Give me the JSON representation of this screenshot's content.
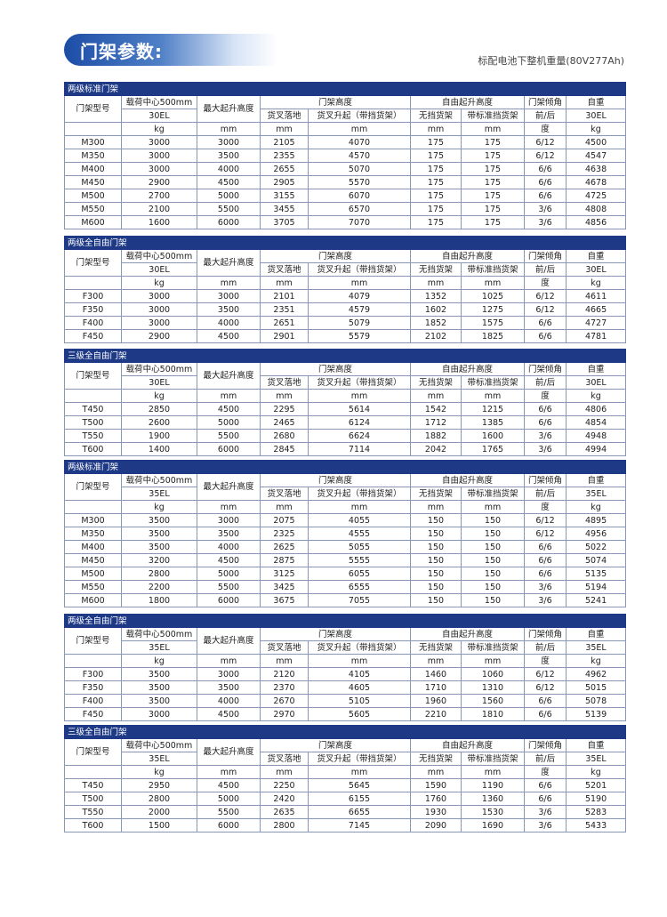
{
  "header": {
    "title": "门架参数:",
    "subtitle": "标配电池下整机重量(80V277Ah)"
  },
  "tables": [
    {
      "section": "两级标准门架",
      "header": [
        [
          "门架型号",
          "载荷中心500mm",
          "最大起升高度",
          "门架高度",
          "自由起升高度",
          "门架倾角",
          "自重"
        ],
        [
          "30EL",
          "货叉落地",
          "货叉升起（带挡货架）",
          "无挡货架",
          "带标准挡货架",
          "前/后",
          "30EL"
        ],
        [
          "kg",
          "mm",
          "mm",
          "mm",
          "mm",
          "mm",
          "度",
          "kg"
        ]
      ],
      "rows": [
        [
          "M300",
          3000,
          3000,
          2105,
          4070,
          175,
          175,
          "6/12",
          4500
        ],
        [
          "M350",
          3000,
          3500,
          2355,
          4570,
          175,
          175,
          "6/12",
          4547
        ],
        [
          "M400",
          3000,
          4000,
          2655,
          5070,
          175,
          175,
          "6/6",
          4638
        ],
        [
          "M450",
          2900,
          4500,
          2905,
          5570,
          175,
          175,
          "6/6",
          4678
        ],
        [
          "M500",
          2700,
          5000,
          3155,
          6070,
          175,
          175,
          "6/6",
          4725
        ],
        [
          "M550",
          2100,
          5500,
          3455,
          6570,
          175,
          175,
          "3/6",
          4808
        ],
        [
          "M600",
          1600,
          6000,
          3705,
          7070,
          175,
          175,
          "3/6",
          4856
        ]
      ]
    },
    {
      "section": "两级全自由门架",
      "header": [
        [
          "门架型号",
          "载荷中心500mm",
          "最大起升高度",
          "门架高度",
          "自由起升高度",
          "门架倾角",
          "自重"
        ],
        [
          "30EL",
          "货叉落地",
          "货叉升起（带挡货架）",
          "无挡货架",
          "带标准挡货架",
          "前/后",
          "30EL"
        ],
        [
          "kg",
          "mm",
          "mm",
          "mm",
          "mm",
          "mm",
          "度",
          "kg"
        ]
      ],
      "rows": [
        [
          "F300",
          3000,
          3000,
          2101,
          4079,
          1352,
          1025,
          "6/12",
          4611
        ],
        [
          "F350",
          3000,
          3500,
          2351,
          4579,
          1602,
          1275,
          "6/12",
          4665
        ],
        [
          "F400",
          3000,
          4000,
          2651,
          5079,
          1852,
          1575,
          "6/6",
          4727
        ],
        [
          "F450",
          2900,
          4500,
          2901,
          5579,
          2102,
          1825,
          "6/6",
          4781
        ]
      ]
    },
    {
      "section": "三级全自由门架",
      "header": [
        [
          "门架型号",
          "载荷中心500mm",
          "最大起升高度",
          "门架高度",
          "自由起升高度",
          "门架倾角",
          "自重"
        ],
        [
          "30EL",
          "货叉落地",
          "货叉升起（带挡货架）",
          "无挡货架",
          "带标准挡货架",
          "前/后",
          "30EL"
        ],
        [
          "kg",
          "mm",
          "mm",
          "mm",
          "mm",
          "mm",
          "度",
          "kg"
        ]
      ],
      "rows": [
        [
          "T450",
          2850,
          4500,
          2295,
          5614,
          1542,
          1215,
          "6/6",
          4806
        ],
        [
          "T500",
          2600,
          5000,
          2465,
          6124,
          1712,
          1385,
          "6/6",
          4854
        ],
        [
          "T550",
          1900,
          5500,
          2680,
          6624,
          1882,
          1600,
          "3/6",
          4948
        ],
        [
          "T600",
          1400,
          6000,
          2845,
          7114,
          2042,
          1765,
          "3/6",
          4994
        ]
      ]
    },
    {
      "section": "两级标准门架",
      "header": [
        [
          "门架型号",
          "载荷中心500mm",
          "最大起升高度",
          "门架高度",
          "自由起升高度",
          "门架倾角",
          "自重"
        ],
        [
          "35EL",
          "货叉落地",
          "货叉升起（带挡货架）",
          "无挡货架",
          "带标准挡货架",
          "前/后",
          "35EL"
        ],
        [
          "kg",
          "mm",
          "mm",
          "mm",
          "mm",
          "mm",
          "度",
          "kg"
        ]
      ],
      "rows": [
        [
          "M300",
          3500,
          3000,
          2075,
          4055,
          150,
          150,
          "6/12",
          4895
        ],
        [
          "M350",
          3500,
          3500,
          2325,
          4555,
          150,
          150,
          "6/12",
          4956
        ],
        [
          "M400",
          3500,
          4000,
          2625,
          5055,
          150,
          150,
          "6/6",
          5022
        ],
        [
          "M450",
          3200,
          4500,
          2875,
          5555,
          150,
          150,
          "6/6",
          5074
        ],
        [
          "M500",
          2800,
          5000,
          3125,
          6055,
          150,
          150,
          "6/6",
          5135
        ],
        [
          "M550",
          2200,
          5500,
          3425,
          6555,
          150,
          150,
          "3/6",
          5194
        ],
        [
          "M600",
          1800,
          6000,
          3675,
          7055,
          150,
          150,
          "3/6",
          5241
        ]
      ]
    },
    {
      "section": "两级全自由门架",
      "header": [
        [
          "门架型号",
          "载荷中心500mm",
          "最大起升高度",
          "门架高度",
          "自由起升高度",
          "门架倾角",
          "自重"
        ],
        [
          "35EL",
          "货叉落地",
          "货叉升起（带挡货架）",
          "无挡货架",
          "带标准挡货架",
          "前/后",
          "35EL"
        ],
        [
          "kg",
          "mm",
          "mm",
          "mm",
          "mm",
          "mm",
          "度",
          "kg"
        ]
      ],
      "rows": [
        [
          "F300",
          3500,
          3000,
          2120,
          4105,
          1460,
          1060,
          "6/12",
          4962
        ],
        [
          "F350",
          3500,
          3500,
          2370,
          4605,
          1710,
          1310,
          "6/12",
          5015
        ],
        [
          "F400",
          3500,
          4000,
          2670,
          5105,
          1960,
          1560,
          "6/6",
          5078
        ],
        [
          "F450",
          3000,
          4500,
          2970,
          5605,
          2210,
          1810,
          "6/6",
          5139
        ]
      ]
    },
    {
      "section": "三级全自由门架",
      "header": [
        [
          "门架型号",
          "载荷中心500mm",
          "最大起升高度",
          "门架高度",
          "自由起升高度",
          "门架倾角",
          "自重"
        ],
        [
          "35EL",
          "货叉落地",
          "货叉升起（带挡货架）",
          "无挡货架",
          "带标准挡货架",
          "前/后",
          "35EL"
        ],
        [
          "kg",
          "mm",
          "mm",
          "mm",
          "mm",
          "mm",
          "度",
          "kg"
        ]
      ],
      "rows": [
        [
          "T450",
          2950,
          4500,
          2250,
          5645,
          1590,
          1190,
          "6/6",
          5201
        ],
        [
          "T500",
          2800,
          5000,
          2420,
          6155,
          1760,
          1360,
          "6/6",
          5190
        ],
        [
          "T550",
          2000,
          5500,
          2635,
          6655,
          1930,
          1530,
          "3/6",
          5283
        ],
        [
          "T600",
          1500,
          6000,
          2800,
          7145,
          2090,
          1690,
          "3/6",
          5433
        ]
      ]
    }
  ]
}
